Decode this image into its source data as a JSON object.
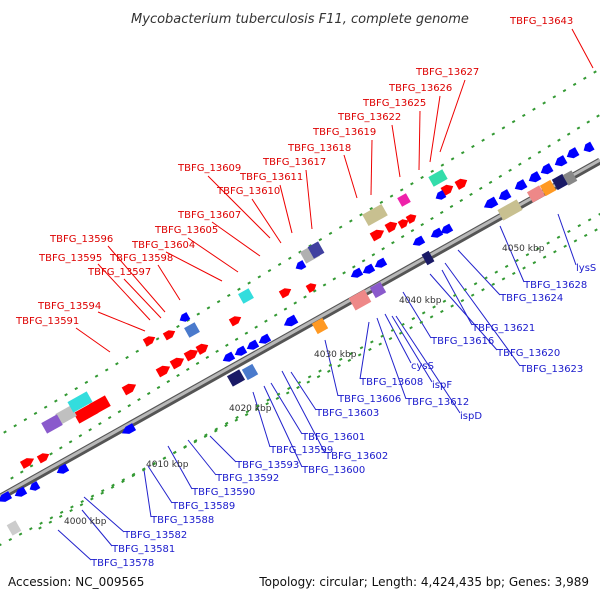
{
  "title": "Mycobacterium tuberculosis F11, complete genome",
  "footer": {
    "accession": "Accession: NC_009565",
    "summary": "Topology: circular; Length: 4,424,435 bp; Genes: 3,989"
  },
  "kbp_labels": [
    "4000 kbp",
    "4010 kbp",
    "4020 kbp",
    "4030 kbp",
    "4040 kbp",
    "4050 kbp"
  ],
  "labels_top": [
    "TBFG_13643",
    "TBFG_13627",
    "TBFG_13626",
    "TBFG_13625",
    "TBFG_13622",
    "TBFG_13619",
    "TBFG_13618",
    "TBFG_13617",
    "TBFG_13609",
    "TBFG_13611",
    "TBFG_13610",
    "TBFG_13607",
    "TBFG_13605",
    "TBFG_13604",
    "TBFG_13596",
    "TBFG_13598",
    "TBFG_13595",
    "TBFG_13597",
    "TBFG_13594",
    "TBFG_13591"
  ],
  "labels_bottom": [
    "lysS",
    "TBFG_13628",
    "TBFG_13624",
    "TBFG_13621",
    "TBFG_13616",
    "TBFG_13620",
    "TBFG_13623",
    "cysS",
    "ispF",
    "TBFG_13608",
    "TBFG_13606",
    "TBFG_13612",
    "ispD",
    "TBFG_13603",
    "TBFG_13601",
    "TBFG_13602",
    "TBFG_13599",
    "TBFG_13600",
    "TBFG_13593",
    "TBFG_13592",
    "TBFG_13590",
    "TBFG_13589",
    "TBFG_13588",
    "TBFG_13582",
    "TBFG_13581",
    "TBFG_13578"
  ],
  "colors": {
    "forward_gene": "#ff0000",
    "reverse_gene": "#0000ff",
    "top_label": "#dd0000",
    "bottom_label": "#1a1acc",
    "backbone": "#888888",
    "tick_marks": "#339933"
  }
}
